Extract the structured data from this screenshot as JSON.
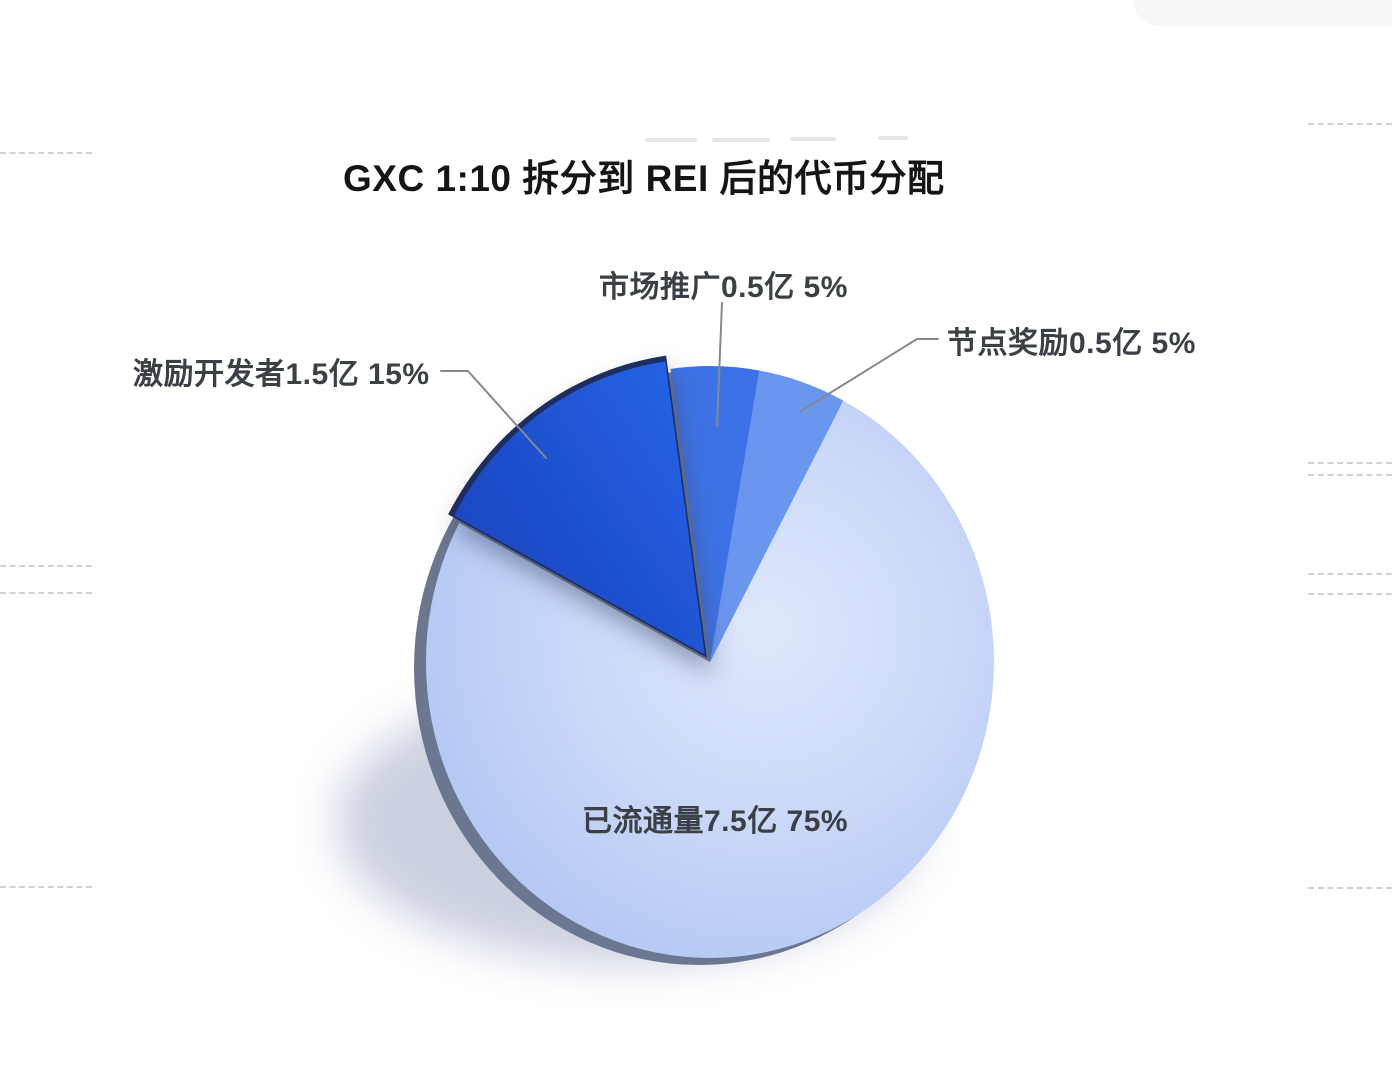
{
  "page": {
    "background": "#ffffff",
    "corner_tab_color": "#f6f7f7",
    "dashed_line_color": "#c9c9c9"
  },
  "chart_data": {
    "type": "pie",
    "style": "3d-exploded",
    "title": "GXC 1:10 拆分到 REI 后的代币分配",
    "legend_position": "none",
    "start_angle_deg": -62,
    "slices": [
      {
        "name": "激励开发者",
        "amount": "1.5亿",
        "percent": 15,
        "display": "激励开发者1.5亿 15%",
        "color": "#1d52d0",
        "gradient": [
          "#1843bd",
          "#2765e9"
        ],
        "side_color": "#1e2f63",
        "exploded": true
      },
      {
        "name": "市场推广",
        "amount": "0.5亿",
        "percent": 5,
        "display": "市场推广0.5亿 5%",
        "color": "#3d72e6"
      },
      {
        "name": "节点奖励",
        "amount": "0.5亿",
        "percent": 5,
        "display": "节点奖励0.5亿 5%",
        "color": "#6b96ed"
      },
      {
        "name": "已流通量",
        "amount": "7.5亿",
        "percent": 75,
        "display": "已流通量7.5亿 75%",
        "color": "#c3d2f6",
        "gradient": [
          "#dfe7fb",
          "#ccd9f8",
          "#a9c1f1"
        ]
      }
    ],
    "rim_color": "#6b7690",
    "shadow_color": "#99a3bf",
    "leader_line_color": "#85898f"
  }
}
